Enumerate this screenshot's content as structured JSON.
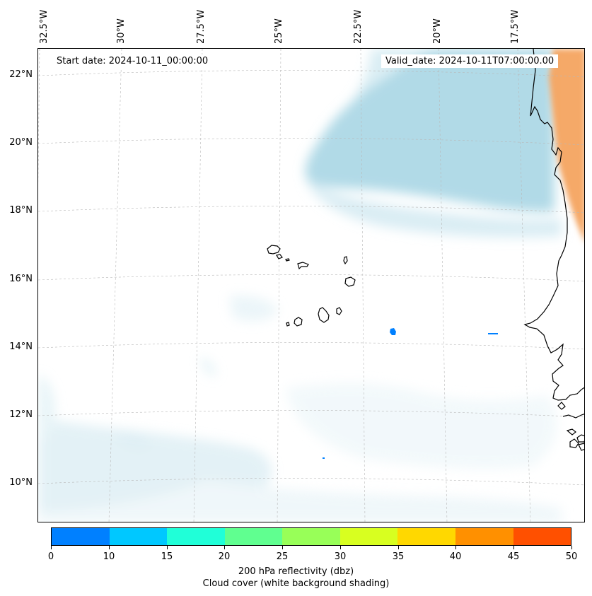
{
  "map": {
    "start_date": "Start date: 2024-10-11_00:00:00",
    "valid_date": "Valid_date: 2024-10-11T07:00:00.00",
    "lon_labels": [
      "32.5°W",
      "30°W",
      "27.5°W",
      "25°W",
      "22.5°W",
      "20°W",
      "17.5°W"
    ],
    "lat_labels": [
      "22°N",
      "20°N",
      "18°N",
      "16°N",
      "14°N",
      "12°N",
      "10°N"
    ],
    "colors": {
      "cloud_light": "#e6f3f7",
      "cloud_dense": "#add8e6",
      "land_hot": "#f4a460",
      "reflectivity_low": "#0080ff",
      "coastline": "#000000"
    }
  },
  "colorbar": {
    "colors": [
      "#0080ff",
      "#00c8ff",
      "#20ffd8",
      "#60ff90",
      "#98ff58",
      "#d8ff20",
      "#ffd800",
      "#ff9000",
      "#ff5000"
    ],
    "ticks": [
      "0",
      "10",
      "15",
      "20",
      "25",
      "30",
      "35",
      "40",
      "45",
      "50"
    ],
    "label_line1": "200 hPa reflectivity (dbz)",
    "label_line2": "Cloud cover (white background shading)"
  }
}
